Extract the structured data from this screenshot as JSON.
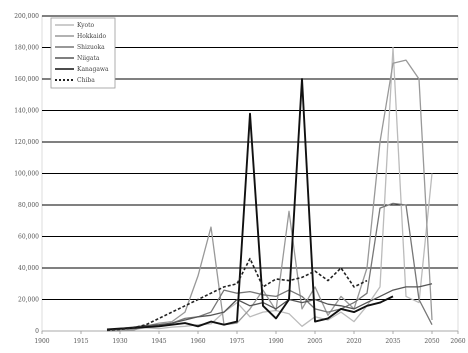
{
  "chart_data": {
    "type": "line",
    "title": "",
    "xlabel": "",
    "ylabel": "",
    "x": [
      1900,
      1905,
      1910,
      1915,
      1920,
      1925,
      1930,
      1935,
      1940,
      1945,
      1950,
      1955,
      1960,
      1965,
      1970,
      1975,
      1980,
      1985,
      1990,
      1995,
      2000,
      2005,
      2010,
      2015,
      2020,
      2025,
      2030,
      2035,
      2040,
      2045,
      2050
    ],
    "xlim": [
      1900,
      2060
    ],
    "ylim": [
      0,
      200000
    ],
    "x_ticks": [
      {
        "value": 1900,
        "label": "1900"
      },
      {
        "value": 1915,
        "label": "1915"
      },
      {
        "value": 1930,
        "label": "1930"
      },
      {
        "value": 1945,
        "label": "1945"
      },
      {
        "value": 1960,
        "label": "1960"
      },
      {
        "value": 1975,
        "label": "1975"
      },
      {
        "value": 1990,
        "label": "1990"
      },
      {
        "value": 2005,
        "label": "2005"
      },
      {
        "value": 2020,
        "label": "2020"
      },
      {
        "value": 2035,
        "label": "2035"
      },
      {
        "value": 2050,
        "label": "2050"
      },
      {
        "value": 2060,
        "label": "2060"
      }
    ],
    "y_ticks": [
      {
        "value": 0,
        "label": "0"
      },
      {
        "value": 20000,
        "label": "20,000"
      },
      {
        "value": 40000,
        "label": "40,000"
      },
      {
        "value": 60000,
        "label": "60,000"
      },
      {
        "value": 80000,
        "label": "80,000"
      },
      {
        "value": 100000,
        "label": "100,000"
      },
      {
        "value": 120000,
        "label": "120,000"
      },
      {
        "value": 140000,
        "label": "140,000"
      },
      {
        "value": 160000,
        "label": "160,000"
      },
      {
        "value": 180000,
        "label": "180,000"
      },
      {
        "value": 200000,
        "label": "200,000"
      }
    ],
    "grid": {
      "horizontal": true,
      "vertical": false
    },
    "legend_position": "top-left",
    "series": [
      {
        "name": "Kyoto",
        "color": "#bbbbbb",
        "dash": "solid",
        "values": [
          null,
          null,
          null,
          null,
          null,
          0,
          500,
          1000,
          2000,
          1500,
          2500,
          3000,
          4000,
          4500,
          12000,
          18000,
          9000,
          12000,
          13000,
          11000,
          3000,
          9000,
          7000,
          12000,
          6000,
          16000,
          28000,
          180000,
          22000,
          18000,
          100000
        ]
      },
      {
        "name": "Hokkaido",
        "color": "#999999",
        "dash": "solid",
        "values": [
          null,
          null,
          null,
          null,
          null,
          0,
          0,
          500,
          3000,
          5000,
          6000,
          12000,
          35000,
          66000,
          4000,
          5000,
          14000,
          26000,
          13000,
          76000,
          14000,
          28000,
          10000,
          22000,
          14000,
          40000,
          120000,
          170000,
          172000,
          160000,
          7000
        ]
      },
      {
        "name": "Shizuoka",
        "color": "#777777",
        "dash": "solid",
        "values": [
          null,
          null,
          null,
          null,
          null,
          500,
          1000,
          1500,
          2500,
          3500,
          5000,
          8000,
          9000,
          12000,
          26000,
          24000,
          25000,
          23000,
          22000,
          26000,
          22000,
          14000,
          12000,
          14000,
          18000,
          24000,
          78000,
          81000,
          80000,
          20000,
          4000
        ]
      },
      {
        "name": "Niigata",
        "color": "#555555",
        "dash": "solid",
        "values": [
          null,
          null,
          null,
          null,
          null,
          800,
          1500,
          2500,
          3500,
          4000,
          5000,
          7000,
          9000,
          10000,
          12000,
          20000,
          16000,
          18000,
          14000,
          20000,
          18000,
          20000,
          17000,
          16000,
          14000,
          18000,
          22000,
          26000,
          28000,
          28000,
          30000
        ]
      },
      {
        "name": "Kanagawa",
        "color": "#111111",
        "dash": "solid",
        "values": [
          null,
          null,
          null,
          null,
          null,
          1000,
          1500,
          2000,
          2500,
          3000,
          4000,
          5000,
          3000,
          6000,
          4000,
          6000,
          138000,
          16000,
          8000,
          20000,
          160000,
          6000,
          8000,
          14000,
          12000,
          16000,
          18000,
          22000,
          null,
          null,
          null
        ]
      },
      {
        "name": "Chiba",
        "color": "#222222",
        "dash": "dotted",
        "values": [
          null,
          null,
          null,
          null,
          null,
          500,
          1000,
          2000,
          4000,
          8000,
          12000,
          16000,
          20000,
          24000,
          28000,
          30000,
          46000,
          28000,
          33000,
          32000,
          34000,
          38000,
          32000,
          40000,
          28000,
          32000,
          null,
          null,
          null,
          null,
          null
        ]
      }
    ]
  }
}
